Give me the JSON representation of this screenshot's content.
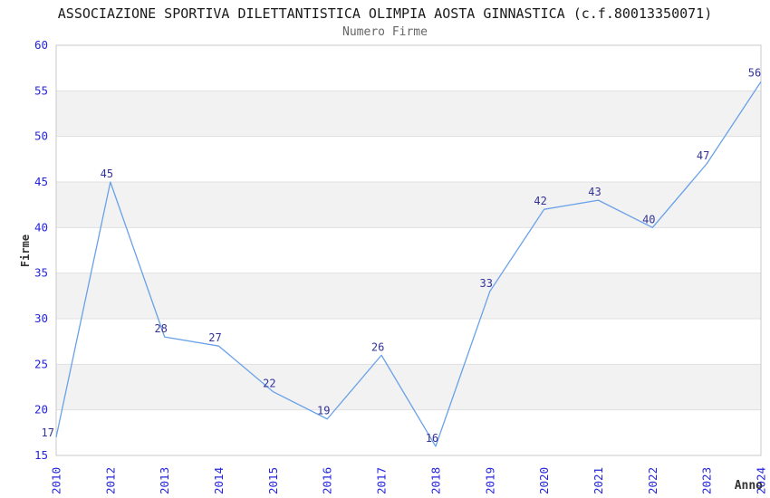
{
  "chart_data": {
    "type": "line",
    "title": "ASSOCIAZIONE SPORTIVA DILETTANTISTICA OLIMPIA AOSTA GINNASTICA (c.f.80013350071)",
    "subtitle": "Numero Firme",
    "xlabel": "Anno",
    "ylabel": "Firme",
    "categories": [
      "2010",
      "2012",
      "2013",
      "2014",
      "2015",
      "2016",
      "2017",
      "2018",
      "2019",
      "2020",
      "2021",
      "2022",
      "2023",
      "2024"
    ],
    "values": [
      17,
      45,
      28,
      27,
      22,
      19,
      26,
      16,
      33,
      42,
      43,
      40,
      47,
      56
    ],
    "ylim": [
      15,
      60
    ],
    "ytick_step": 5,
    "yticks": [
      15,
      20,
      25,
      30,
      35,
      40,
      45,
      50,
      55,
      60
    ],
    "grid": "horizontal-bands",
    "legend": "none",
    "point_labels_shown": true,
    "colors": {
      "line": "#69A1E8",
      "tick_label": "#2525DD",
      "point_label": "#333399",
      "band": "#F2F2F2",
      "gridline": "#E0E0E0",
      "border": "#C9C9C9",
      "title": "#1A1A1A",
      "subtitle": "#666666",
      "axis_label": "#333333"
    }
  }
}
